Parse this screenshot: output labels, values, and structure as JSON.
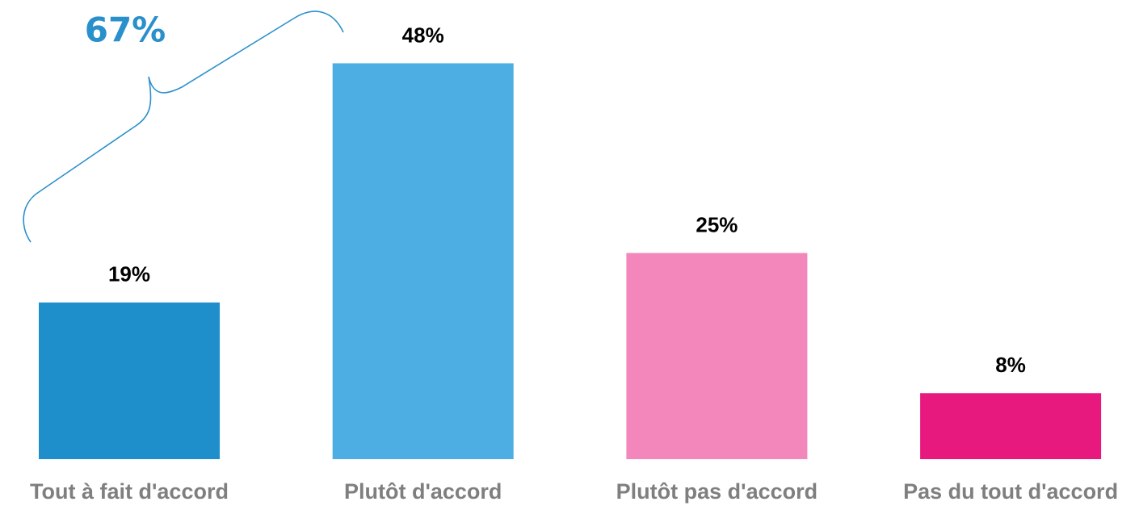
{
  "chart_data": {
    "type": "bar",
    "categories": [
      "Tout à fait d'accord",
      "Plutôt d'accord",
      "Plutôt pas d'accord",
      "Pas du tout d'accord"
    ],
    "values": [
      19,
      48,
      25,
      8
    ],
    "value_labels": [
      "19%",
      "48%",
      "25%",
      "8%"
    ],
    "colors": [
      "#1f8fcb",
      "#4daee3",
      "#f387bb",
      "#e8197e"
    ],
    "ylim": [
      0,
      50
    ],
    "annotation": "67%"
  }
}
